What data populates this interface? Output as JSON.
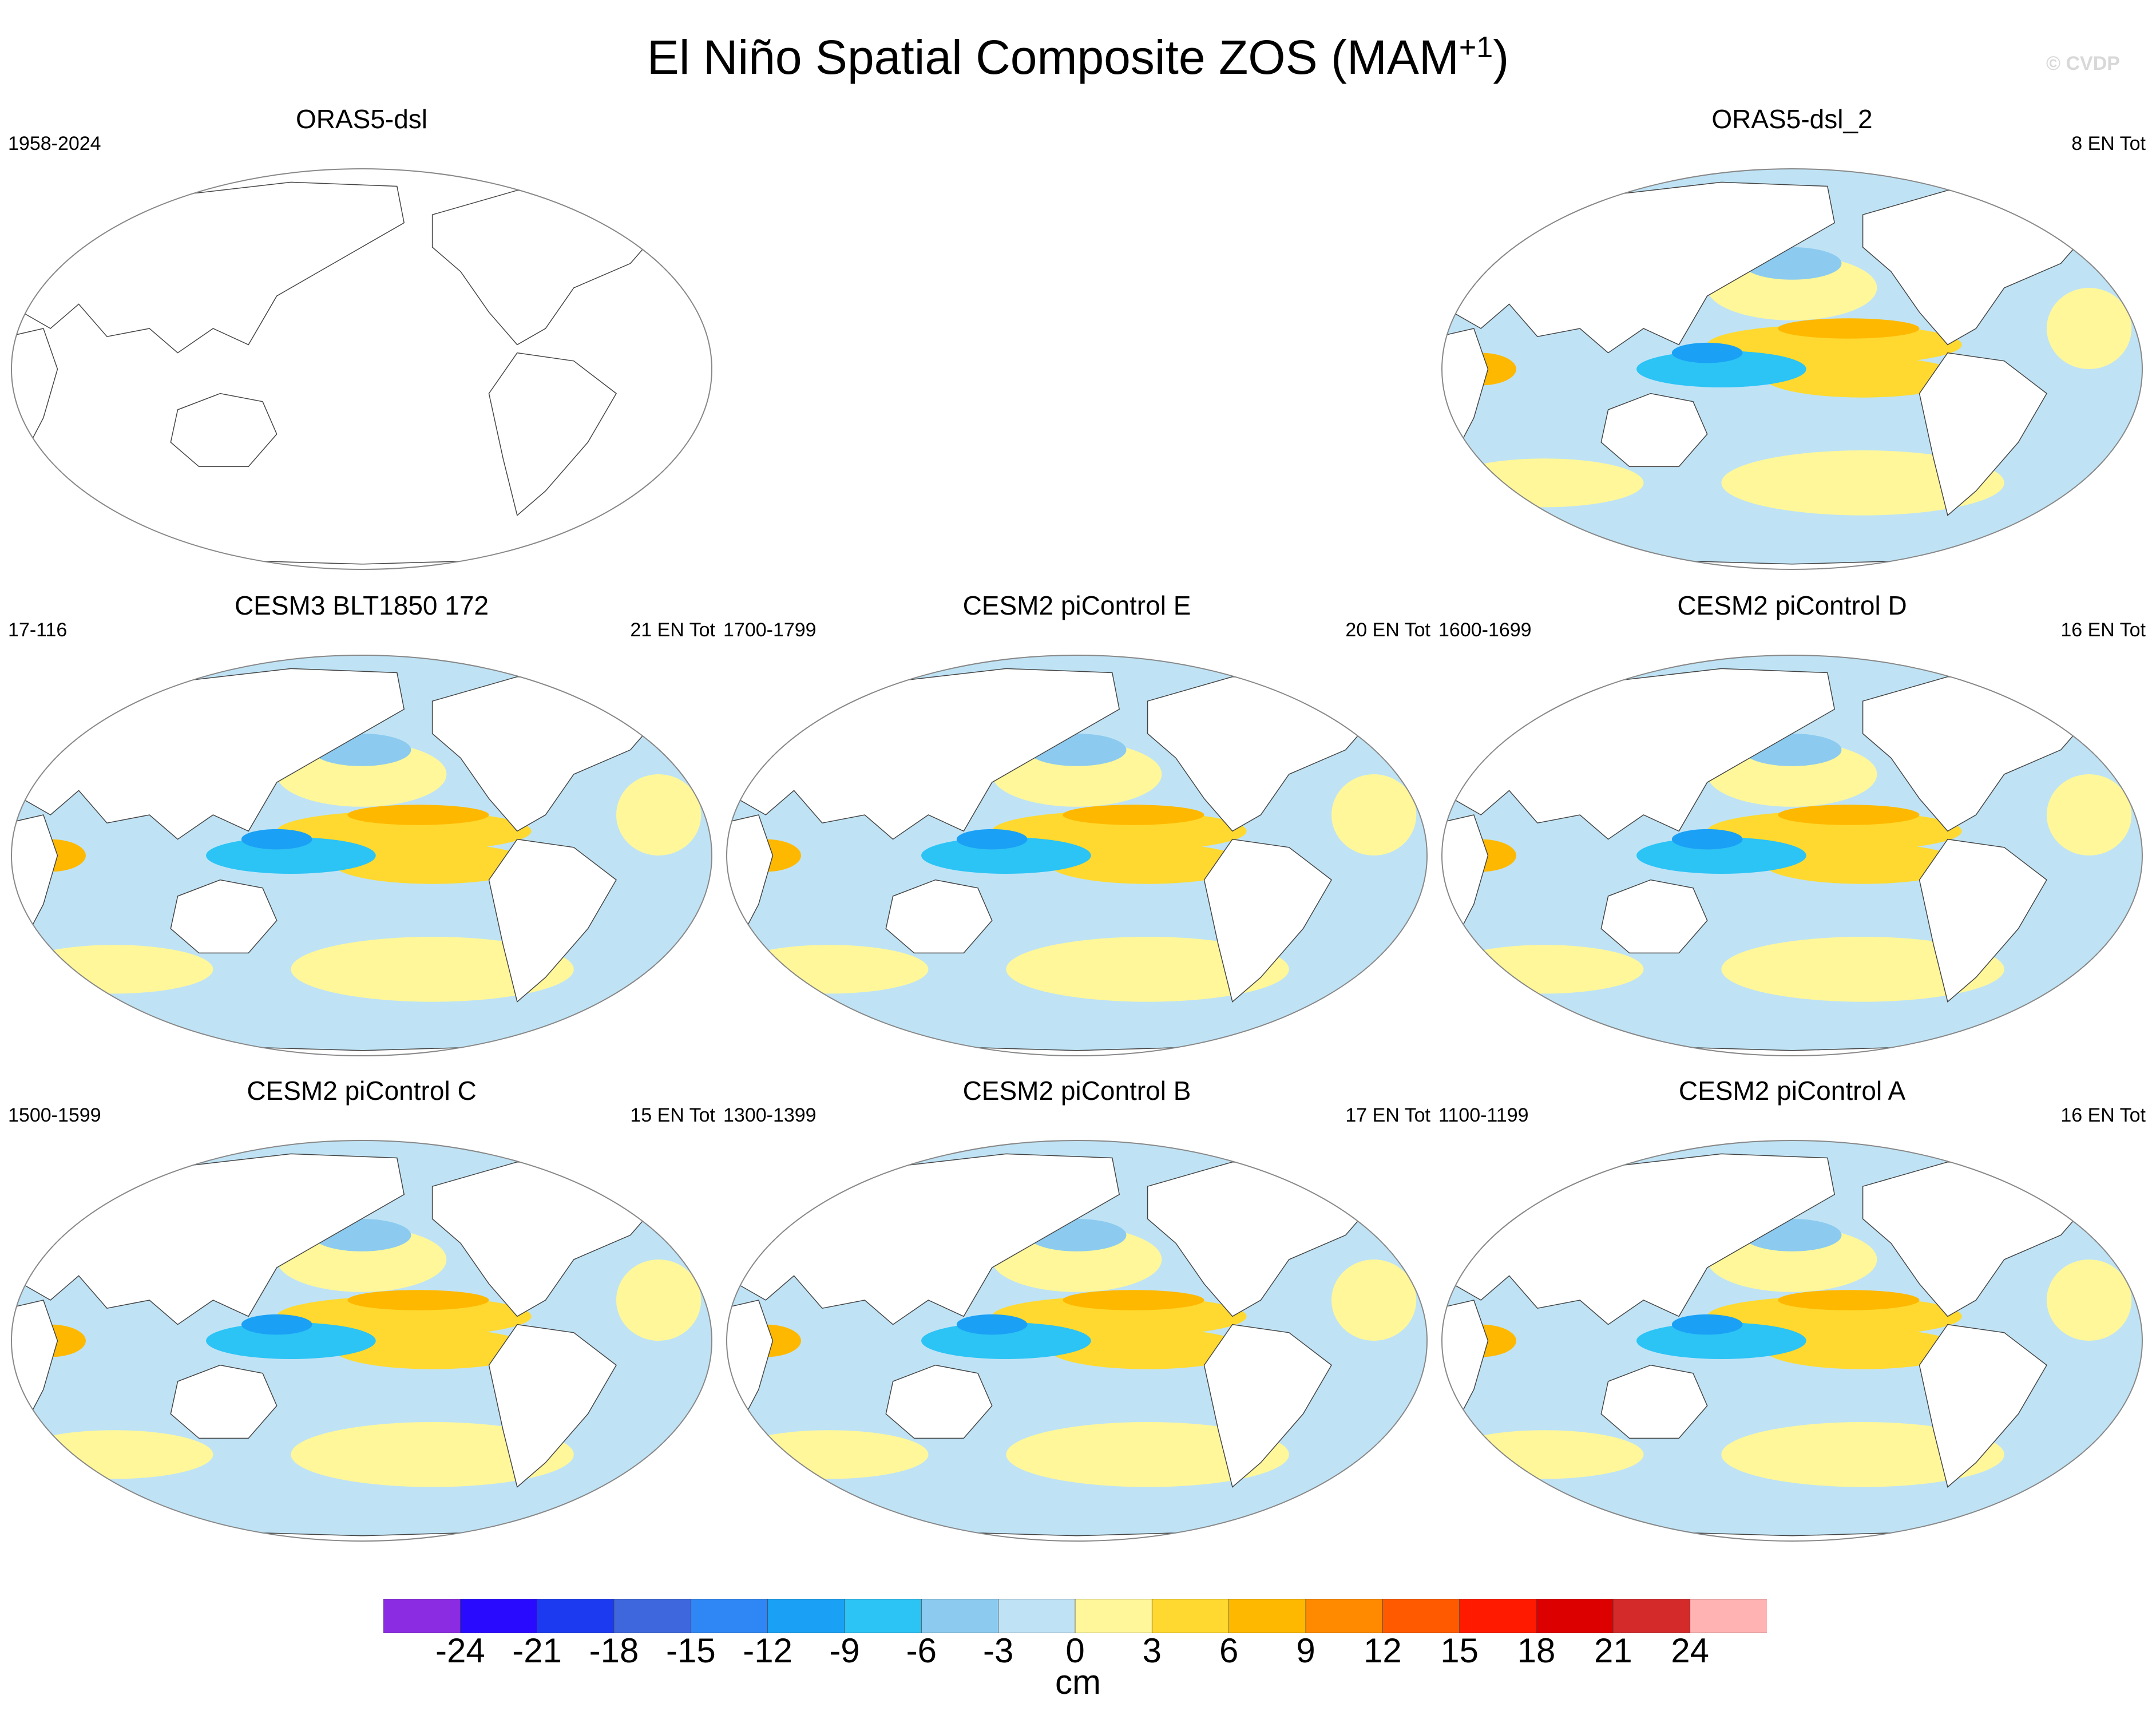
{
  "figure": {
    "title": "El Niño Spatial Composite ZOS (MAM",
    "title_sup": "+1",
    "title_close": ")",
    "watermark": "© CVDP"
  },
  "panels": [
    {
      "title": "ORAS5-dsl",
      "left": "1958-2024",
      "right": "",
      "filled": false
    },
    {
      "title": "ORAS5-dsl_2",
      "left": "",
      "right": "8 EN Tot",
      "filled": true
    },
    {
      "title": "CESM3 BLT1850 172",
      "left": "17-116",
      "right": "21 EN Tot",
      "filled": true
    },
    {
      "title": "CESM2 piControl E",
      "left": "1700-1799",
      "right": "20 EN Tot",
      "filled": true
    },
    {
      "title": "CESM2 piControl D",
      "left": "1600-1699",
      "right": "16 EN Tot",
      "filled": true
    },
    {
      "title": "CESM2 piControl C",
      "left": "1500-1599",
      "right": "15 EN Tot",
      "filled": true
    },
    {
      "title": "CESM2 piControl B",
      "left": "1300-1399",
      "right": "17 EN Tot",
      "filled": true
    },
    {
      "title": "CESM2 piControl A",
      "left": "1100-1199",
      "right": "16 EN Tot",
      "filled": true
    }
  ],
  "colorbar": {
    "labels": [
      "-24",
      "-21",
      "-18",
      "-15",
      "-12",
      "-9",
      "-6",
      "-3",
      "0",
      "3",
      "6",
      "9",
      "12",
      "15",
      "18",
      "21",
      "24"
    ],
    "units": "cm",
    "colors": [
      "#8b2be2",
      "#2a0aff",
      "#1c3af0",
      "#3f67dd",
      "#2f86f5",
      "#1aa0f5",
      "#2cc3f5",
      "#8ccbef",
      "#bfe3f5",
      "#fff79a",
      "#ffd92f",
      "#ffb800",
      "#ff8a00",
      "#ff5a00",
      "#ff1a00",
      "#dd0000",
      "#d42a2a",
      "#ffb3b3"
    ]
  }
}
